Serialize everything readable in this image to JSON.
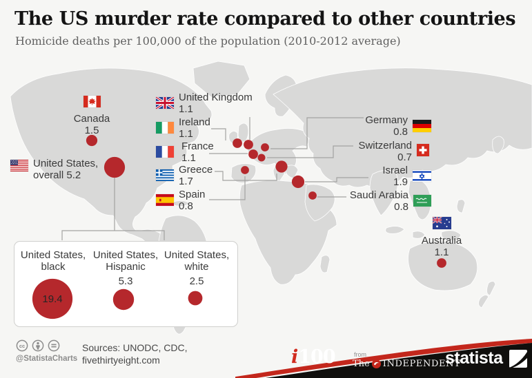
{
  "header": {
    "title": "The US murder rate compared to other countries",
    "subtitle": "Homicide deaths per 100,000 of the population (2010-2012 average)"
  },
  "chart_data": {
    "type": "bubble-map",
    "title": "The US murder rate compared to other countries",
    "subtitle": "Homicide deaths per 100,000 of the population (2010-2012 average)",
    "unit": "homicide deaths per 100,000 population (2010-2012 average)",
    "bubble_color": "#b5282c",
    "points": [
      {
        "id": "canada",
        "label": "Canada",
        "value": 1.5
      },
      {
        "id": "us_overall",
        "label": "United States, overall",
        "line1": "United States,",
        "line2": "overall",
        "value": 5.2
      },
      {
        "id": "uk",
        "label": "United Kingdom",
        "value": 1.1
      },
      {
        "id": "ireland",
        "label": "Ireland",
        "value": 1.1
      },
      {
        "id": "france",
        "label": "France",
        "value": 1.1
      },
      {
        "id": "greece",
        "label": "Greece",
        "value": 1.7
      },
      {
        "id": "spain",
        "label": "Spain",
        "value": 0.8
      },
      {
        "id": "germany",
        "label": "Germany",
        "value": 0.8
      },
      {
        "id": "switzerland",
        "label": "Switzerland",
        "value": 0.7
      },
      {
        "id": "israel",
        "label": "Israel",
        "value": 1.9
      },
      {
        "id": "saudi",
        "label": "Saudi Arabia",
        "value": 0.8
      },
      {
        "id": "australia",
        "label": "Australia",
        "value": 1.1
      },
      {
        "id": "us_black",
        "label": "United States, black",
        "line1": "United States,",
        "line2": "black",
        "value": 19.4
      },
      {
        "id": "us_hispanic",
        "label": "United States, Hispanic",
        "line1": "United States,",
        "line2": "Hispanic",
        "value": 5.3
      },
      {
        "id": "us_white",
        "label": "United States, white",
        "line1": "United States,",
        "line2": "white",
        "value": 2.5
      }
    ]
  },
  "footer": {
    "attribution_handle": "@StatistaCharts",
    "sources_line1": "Sources: UNODC, CDC,",
    "sources_line2": "fivethirtyeight.com",
    "i100_i": "i",
    "i100_number": "100",
    "from_label": "from",
    "independent_the": "The",
    "independent_name": "INDEPENDENT",
    "statista_brand": "statista"
  }
}
